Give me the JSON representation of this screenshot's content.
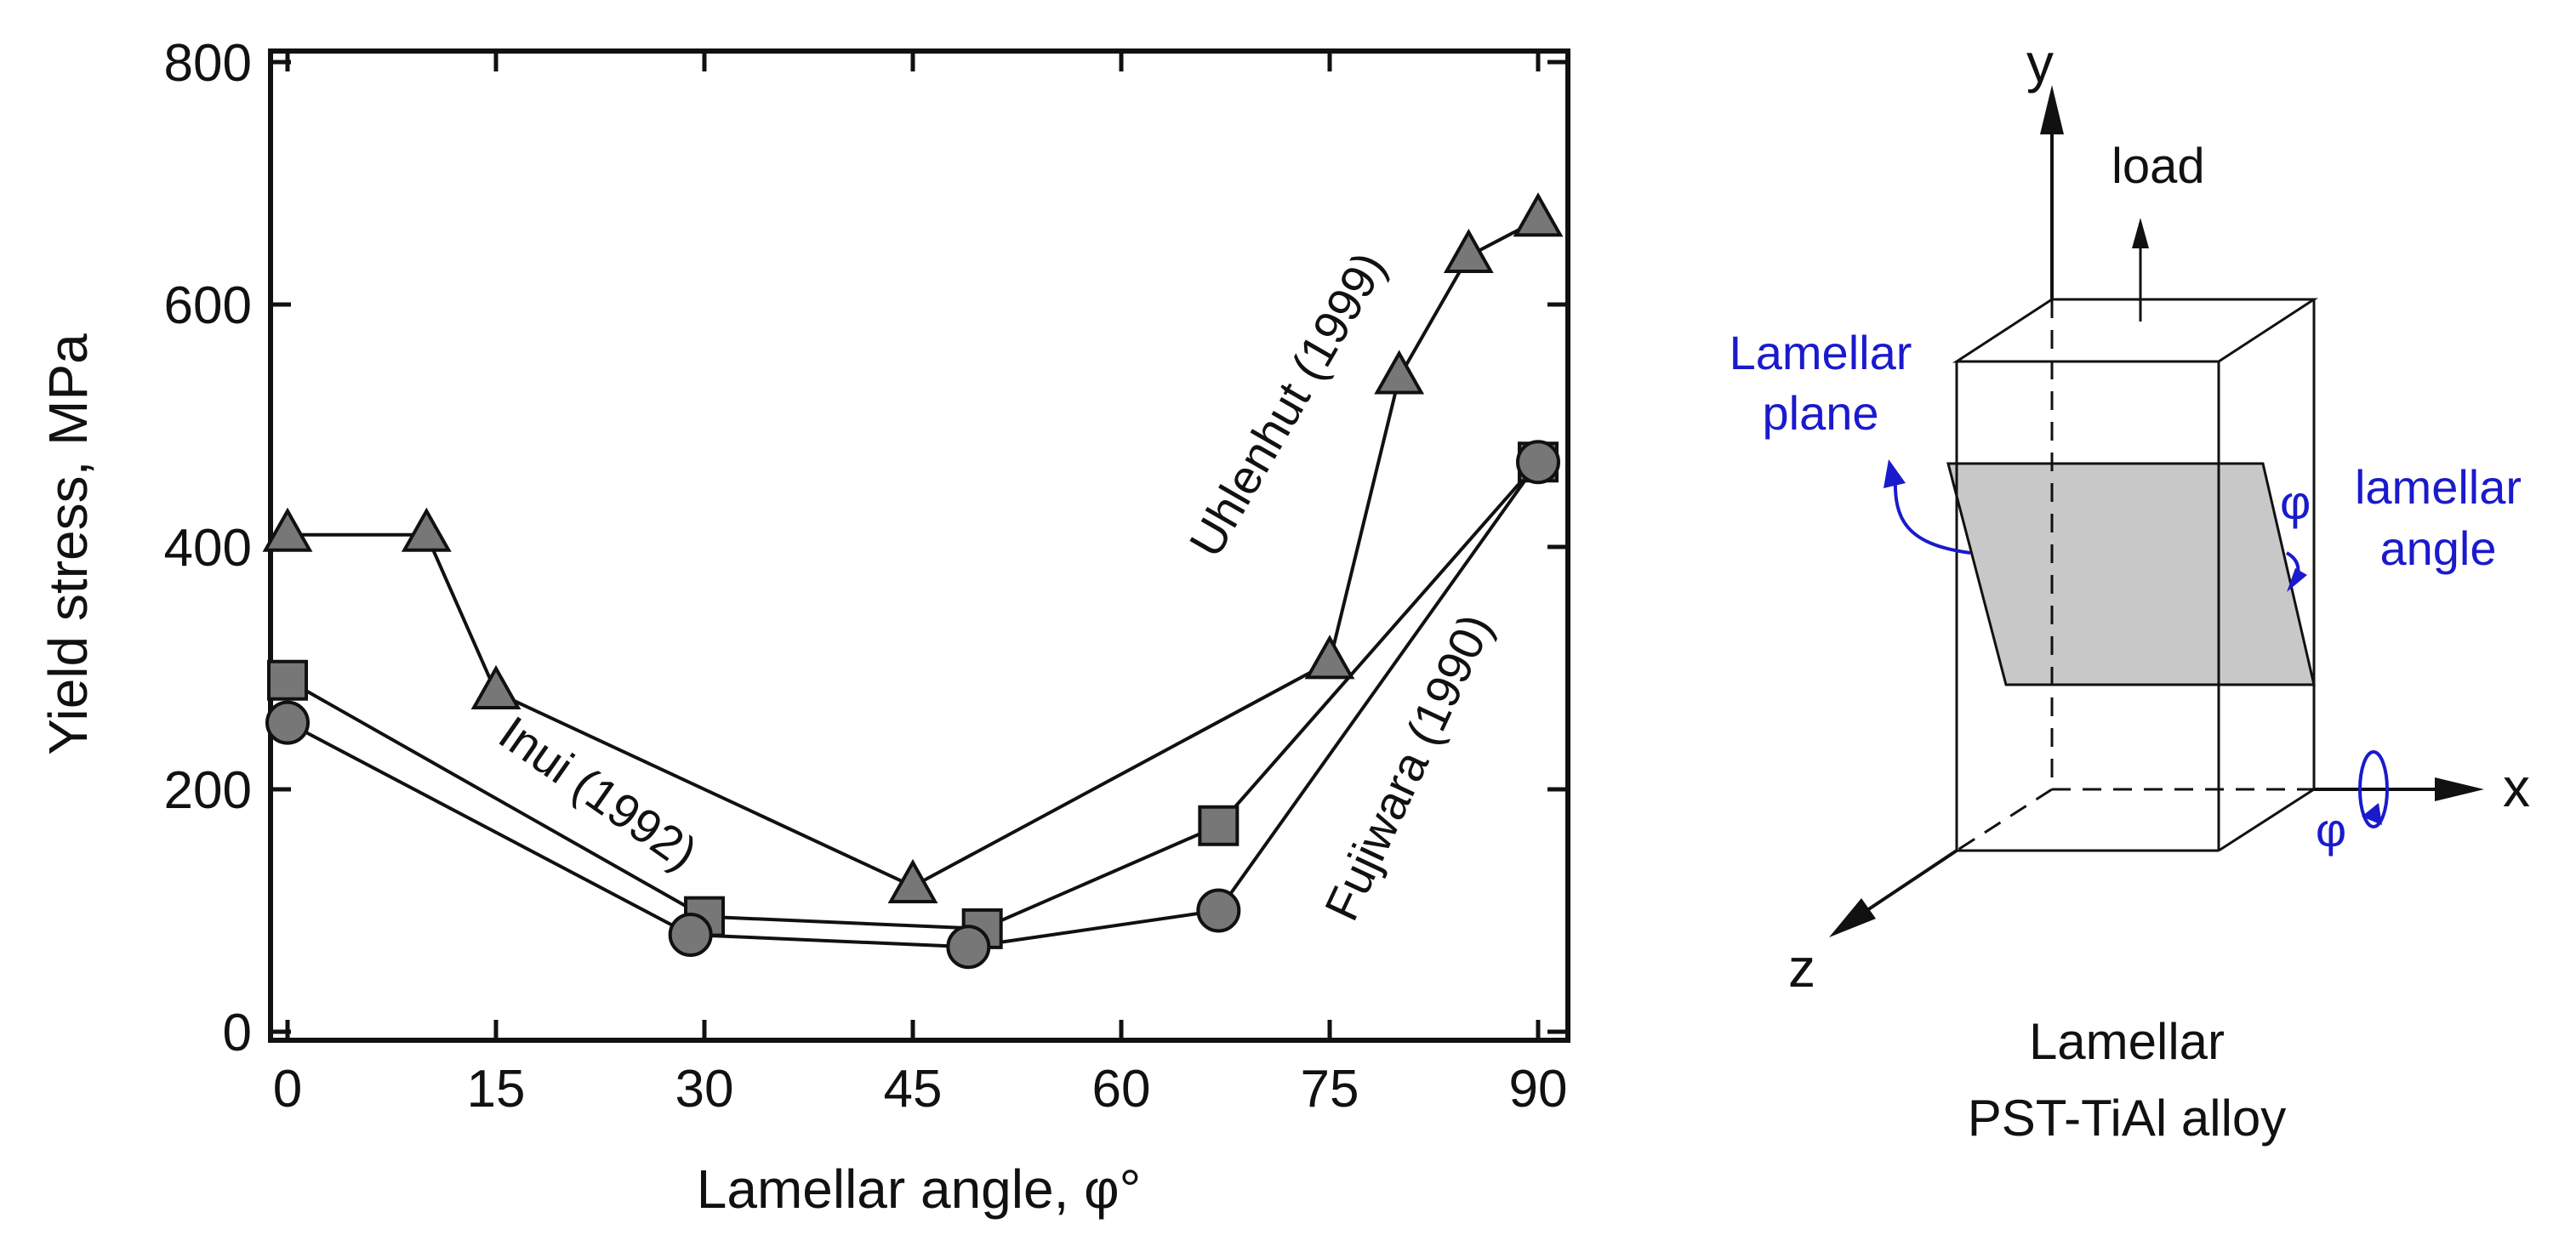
{
  "chart_data": {
    "type": "line",
    "xlabel": "Lamellar angle, φ°",
    "ylabel": "Yield stress, MPa",
    "xlim": [
      -2,
      92
    ],
    "ylim": [
      0,
      800
    ],
    "x_ticks": [
      "0",
      "15",
      "30",
      "45",
      "60",
      "75",
      "90"
    ],
    "x_tick_values": [
      0,
      15,
      30,
      45,
      60,
      75,
      90
    ],
    "y_ticks": [
      "0",
      "200",
      "400",
      "600",
      "800"
    ],
    "y_tick_values": [
      0,
      200,
      400,
      600,
      800
    ],
    "grid": false,
    "series": [
      {
        "name": "Uhlenhut (1999)",
        "marker": "triangle",
        "x": [
          0,
          10,
          15,
          45,
          75,
          80,
          85,
          90
        ],
        "y": [
          410,
          410,
          280,
          120,
          305,
          540,
          640,
          670
        ]
      },
      {
        "name": "Inui (1992)",
        "marker": "square",
        "x": [
          0,
          30,
          50,
          67,
          90
        ],
        "y": [
          290,
          95,
          85,
          170,
          470
        ]
      },
      {
        "name": "Fujiwara (1990)",
        "marker": "circle",
        "x": [
          0,
          29,
          49,
          67,
          90
        ],
        "y": [
          255,
          80,
          70,
          100,
          470
        ]
      }
    ]
  },
  "schematic": {
    "axis_y": "y",
    "axis_x": "x",
    "axis_z": "z",
    "load_label": "load",
    "lamellar_plane_line1": "Lamellar",
    "lamellar_plane_line2": "plane",
    "phi_symbol": "φ",
    "lamellar_angle_line1": "lamellar",
    "lamellar_angle_line2": "angle",
    "rotation_symbol": "φ",
    "caption_line1": "Lamellar",
    "caption_line2": "PST-TiAl alloy"
  },
  "colors": {
    "marker_fill": "#777777",
    "blue": "#1a1acc",
    "plane_fill": "#c8c8c8"
  }
}
